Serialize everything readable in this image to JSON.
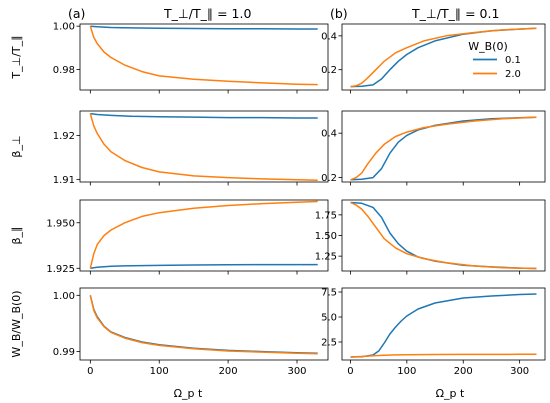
{
  "figure": {
    "column_labels": [
      "(a)",
      "(b)"
    ],
    "column_titles": [
      "T_⊥/T_∥ = 1.0",
      "T_⊥/T_∥ = 0.1"
    ],
    "row_ylabels": [
      "T_⊥/T_∥",
      "β_⊥",
      "β_∥",
      "W_B/W_B(0)"
    ],
    "xlabel": "Ω_p t",
    "legend_title": "W_B(0)",
    "series_colors": {
      "0.1": "#1f77b4",
      "2.0": "#ff7f0e"
    }
  },
  "chart_data": [
    {
      "panel": "a1",
      "type": "line",
      "ylabel": "T_⊥/T_∥",
      "xlim": [
        -15,
        345
      ],
      "ylim": [
        0.9705,
        1.001
      ],
      "xticks": [
        0,
        100,
        200,
        300
      ],
      "xtick_labels": [],
      "yticks": [
        0.98,
        1.0
      ],
      "ytick_labels": [
        "0.98",
        "1.00"
      ],
      "series": [
        {
          "name": "0.1",
          "color": "#1f77b4",
          "x": [
            0,
            10,
            30,
            60,
            100,
            150,
            200,
            250,
            300,
            330
          ],
          "y": [
            1.0,
            0.9997,
            0.9994,
            0.9992,
            0.999,
            0.9989,
            0.9988,
            0.9988,
            0.9987,
            0.9987
          ]
        },
        {
          "name": "2.0",
          "color": "#ff7f0e",
          "x": [
            0,
            5,
            10,
            20,
            30,
            50,
            75,
            100,
            150,
            200,
            250,
            300,
            330
          ],
          "y": [
            1.0,
            0.9948,
            0.992,
            0.988,
            0.9855,
            0.982,
            0.979,
            0.977,
            0.9755,
            0.9745,
            0.9738,
            0.9732,
            0.973
          ]
        }
      ]
    },
    {
      "panel": "b1",
      "type": "line",
      "ylabel": "",
      "xlim": [
        -15,
        345
      ],
      "ylim": [
        0.08,
        0.47
      ],
      "xticks": [
        0,
        100,
        200,
        300
      ],
      "xtick_labels": [],
      "yticks": [
        0.2,
        0.4
      ],
      "ytick_labels": [
        "0.2",
        "0.4"
      ],
      "legend": {
        "title": "W_B(0)",
        "entries": [
          "0.1",
          "2.0"
        ],
        "placement": "right"
      },
      "series": [
        {
          "name": "0.1",
          "color": "#1f77b4",
          "x": [
            0,
            20,
            40,
            55,
            70,
            85,
            100,
            120,
            150,
            200,
            250,
            300,
            330
          ],
          "y": [
            0.1,
            0.102,
            0.11,
            0.145,
            0.2,
            0.25,
            0.29,
            0.33,
            0.37,
            0.41,
            0.43,
            0.44,
            0.445
          ]
        },
        {
          "name": "2.0",
          "color": "#ff7f0e",
          "x": [
            0,
            10,
            20,
            30,
            45,
            60,
            80,
            100,
            130,
            170,
            220,
            270,
            330
          ],
          "y": [
            0.1,
            0.105,
            0.12,
            0.15,
            0.2,
            0.25,
            0.3,
            0.33,
            0.37,
            0.4,
            0.42,
            0.435,
            0.445
          ]
        }
      ]
    },
    {
      "panel": "a2",
      "type": "line",
      "ylabel": "β_⊥",
      "xlim": [
        -15,
        345
      ],
      "ylim": [
        1.9094,
        1.9256
      ],
      "xticks": [
        0,
        100,
        200,
        300
      ],
      "xtick_labels": [],
      "yticks": [
        1.91,
        1.92
      ],
      "ytick_labels": [
        "1.91",
        "1.92"
      ],
      "series": [
        {
          "name": "0.1",
          "color": "#1f77b4",
          "x": [
            0,
            10,
            30,
            60,
            100,
            150,
            200,
            250,
            300,
            330
          ],
          "y": [
            1.925,
            1.9248,
            1.9246,
            1.9244,
            1.9243,
            1.9242,
            1.9241,
            1.9241,
            1.924,
            1.924
          ]
        },
        {
          "name": "2.0",
          "color": "#ff7f0e",
          "x": [
            0,
            5,
            10,
            20,
            30,
            50,
            75,
            100,
            150,
            200,
            250,
            300,
            330
          ],
          "y": [
            1.925,
            1.9222,
            1.9205,
            1.918,
            1.9163,
            1.9143,
            1.9127,
            1.9117,
            1.9108,
            1.9104,
            1.9101,
            1.9099,
            1.9098
          ]
        }
      ]
    },
    {
      "panel": "b2",
      "type": "line",
      "ylabel": "",
      "xlim": [
        -15,
        345
      ],
      "ylim": [
        0.18,
        0.5
      ],
      "xticks": [
        0,
        100,
        200,
        300
      ],
      "xtick_labels": [],
      "yticks": [
        0.2,
        0.4
      ],
      "ytick_labels": [
        "0.2",
        "0.4"
      ],
      "series": [
        {
          "name": "0.1",
          "color": "#1f77b4",
          "x": [
            0,
            20,
            40,
            55,
            70,
            85,
            100,
            120,
            150,
            200,
            250,
            300,
            330
          ],
          "y": [
            0.19,
            0.192,
            0.2,
            0.24,
            0.31,
            0.36,
            0.39,
            0.415,
            0.435,
            0.455,
            0.465,
            0.47,
            0.472
          ]
        },
        {
          "name": "2.0",
          "color": "#ff7f0e",
          "x": [
            0,
            10,
            20,
            30,
            45,
            60,
            80,
            100,
            130,
            170,
            220,
            270,
            330
          ],
          "y": [
            0.19,
            0.2,
            0.22,
            0.26,
            0.31,
            0.35,
            0.385,
            0.405,
            0.425,
            0.44,
            0.455,
            0.465,
            0.472
          ]
        }
      ]
    },
    {
      "panel": "a3",
      "type": "line",
      "ylabel": "β_∥",
      "xlim": [
        -15,
        345
      ],
      "ylim": [
        1.9235,
        1.9625
      ],
      "xticks": [
        0,
        100,
        200,
        300
      ],
      "xtick_labels": [],
      "yticks": [
        1.925,
        1.95
      ],
      "ytick_labels": [
        "1.925",
        "1.950"
      ],
      "series": [
        {
          "name": "0.1",
          "color": "#1f77b4",
          "x": [
            0,
            10,
            30,
            60,
            100,
            150,
            200,
            250,
            300,
            330
          ],
          "y": [
            1.925,
            1.9256,
            1.9261,
            1.9264,
            1.9266,
            1.9268,
            1.9269,
            1.927,
            1.927,
            1.927
          ]
        },
        {
          "name": "2.0",
          "color": "#ff7f0e",
          "x": [
            0,
            5,
            10,
            20,
            30,
            50,
            75,
            100,
            150,
            200,
            250,
            300,
            330
          ],
          "y": [
            1.925,
            1.933,
            1.938,
            1.943,
            1.946,
            1.95,
            1.9535,
            1.9555,
            1.958,
            1.9595,
            1.9605,
            1.9613,
            1.9617
          ]
        }
      ]
    },
    {
      "panel": "b3",
      "type": "line",
      "ylabel": "",
      "xlim": [
        -15,
        345
      ],
      "ylim": [
        1.07,
        1.93
      ],
      "xticks": [
        0,
        100,
        200,
        300
      ],
      "xtick_labels": [],
      "yticks": [
        1.25,
        1.5,
        1.75
      ],
      "ytick_labels": [
        "1.25",
        "1.50",
        "1.75"
      ],
      "series": [
        {
          "name": "0.1",
          "color": "#1f77b4",
          "x": [
            0,
            20,
            40,
            55,
            70,
            85,
            100,
            120,
            150,
            200,
            250,
            300,
            330
          ],
          "y": [
            1.9,
            1.89,
            1.84,
            1.72,
            1.53,
            1.4,
            1.31,
            1.24,
            1.19,
            1.14,
            1.12,
            1.105,
            1.1
          ]
        },
        {
          "name": "2.0",
          "color": "#ff7f0e",
          "x": [
            0,
            10,
            20,
            30,
            45,
            60,
            80,
            100,
            130,
            170,
            220,
            270,
            330
          ],
          "y": [
            1.9,
            1.87,
            1.82,
            1.74,
            1.6,
            1.46,
            1.35,
            1.28,
            1.22,
            1.17,
            1.13,
            1.11,
            1.1
          ]
        }
      ]
    },
    {
      "panel": "a4",
      "type": "line",
      "ylabel": "W_B/W_B(0)",
      "xlim": [
        -15,
        345
      ],
      "ylim": [
        0.9885,
        1.0013
      ],
      "xticks": [
        0,
        100,
        200,
        300
      ],
      "xtick_labels": [
        "0",
        "100",
        "200",
        "300"
      ],
      "yticks": [
        0.99,
        1.0
      ],
      "ytick_labels": [
        "0.99",
        "1.00"
      ],
      "series": [
        {
          "name": "0.1",
          "color": "#1f77b4",
          "x": [
            0,
            5,
            10,
            20,
            30,
            50,
            75,
            100,
            150,
            200,
            250,
            300,
            330
          ],
          "y": [
            1.0,
            0.9975,
            0.9962,
            0.9945,
            0.9935,
            0.9925,
            0.9917,
            0.9912,
            0.9906,
            0.9902,
            0.99,
            0.9898,
            0.9897
          ]
        },
        {
          "name": "2.0",
          "color": "#ff7f0e",
          "x": [
            0,
            5,
            10,
            20,
            30,
            50,
            75,
            100,
            150,
            200,
            250,
            300,
            330
          ],
          "y": [
            1.0,
            0.9973,
            0.996,
            0.9944,
            0.9934,
            0.9924,
            0.9916,
            0.9911,
            0.9905,
            0.9901,
            0.9899,
            0.9897,
            0.9896
          ]
        }
      ]
    },
    {
      "panel": "b4",
      "type": "line",
      "ylabel": "",
      "xlim": [
        -15,
        345
      ],
      "ylim": [
        0.7,
        7.9
      ],
      "xticks": [
        0,
        100,
        200,
        300
      ],
      "xtick_labels": [
        "0",
        "100",
        "200",
        "300"
      ],
      "yticks": [
        2.5,
        5.0,
        7.5
      ],
      "ytick_labels": [
        "2.5",
        "5.0",
        "7.5"
      ],
      "series": [
        {
          "name": "0.1",
          "color": "#1f77b4",
          "x": [
            0,
            20,
            40,
            50,
            60,
            70,
            80,
            90,
            100,
            120,
            150,
            200,
            250,
            300,
            330
          ],
          "y": [
            1.0,
            1.02,
            1.2,
            1.6,
            2.4,
            3.3,
            4.0,
            4.6,
            5.1,
            5.8,
            6.4,
            6.9,
            7.1,
            7.25,
            7.3
          ]
        },
        {
          "name": "2.0",
          "color": "#ff7f0e",
          "x": [
            0,
            20,
            40,
            60,
            80,
            100,
            150,
            200,
            250,
            300,
            330
          ],
          "y": [
            1.0,
            1.05,
            1.12,
            1.18,
            1.21,
            1.23,
            1.25,
            1.26,
            1.265,
            1.27,
            1.27
          ]
        }
      ]
    }
  ]
}
